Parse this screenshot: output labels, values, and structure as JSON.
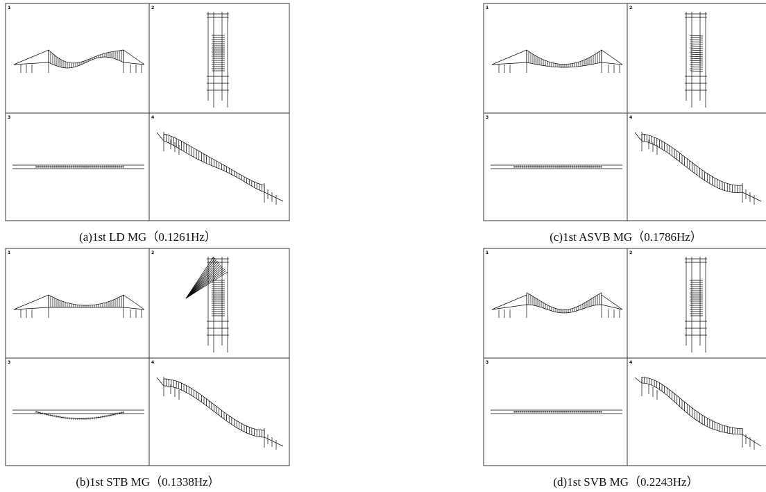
{
  "figures": [
    {
      "caption": "(a)1st LD MG（0.1261Hz）",
      "panels": [
        "1",
        "2",
        "3",
        "4"
      ]
    },
    {
      "caption": "(b)1st STB MG（0.1338Hz）",
      "panels": [
        "1",
        "2",
        "3",
        "4"
      ]
    },
    {
      "caption": "(c)1st ASVB MG（0.1786Hz）",
      "panels": [
        "1",
        "2",
        "3",
        "4"
      ]
    },
    {
      "caption": "(d)1st SVB MG（0.2243Hz）",
      "panels": [
        "1",
        "2",
        "3",
        "4"
      ]
    }
  ]
}
